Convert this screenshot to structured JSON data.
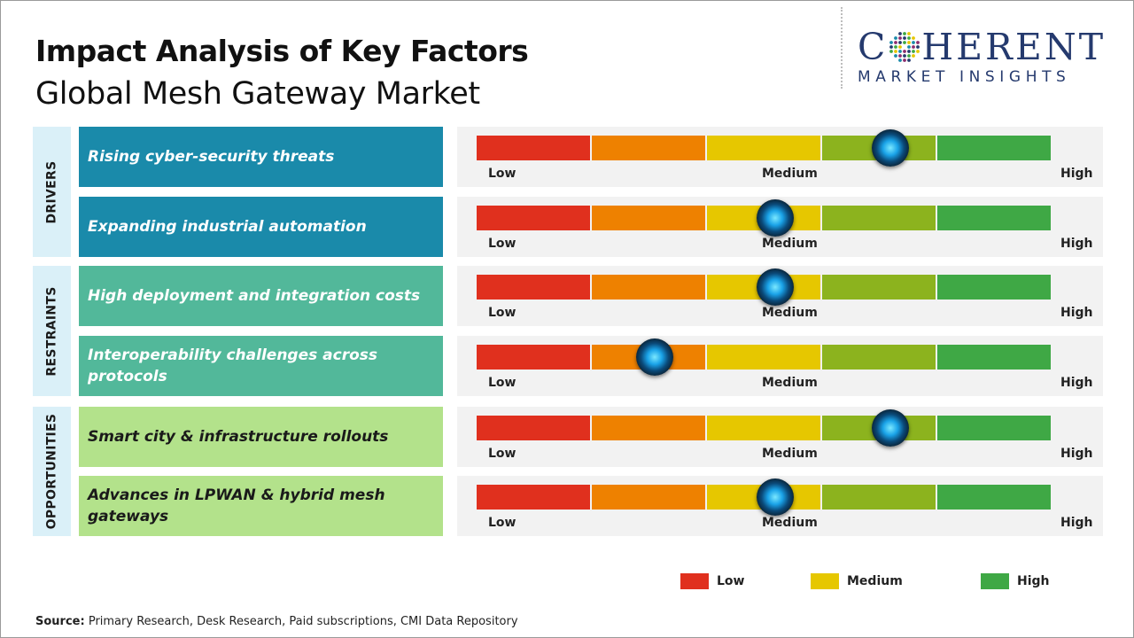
{
  "title": "Impact Analysis of Key Factors",
  "subtitle": "Global Mesh Gateway Market",
  "logo": {
    "main": "COHERENT",
    "sub": "MARKET INSIGHTS"
  },
  "colors": {
    "segments": [
      "#e0301e",
      "#ee8100",
      "#e6c700",
      "#8cb31e",
      "#3fa845"
    ],
    "category_bg": [
      "#daf0f8",
      "#daf0f8",
      "#daf0f8"
    ],
    "drivers_bar": "#1a8aaa",
    "restraints_bar": "#52b89a",
    "opportunities_bar": "#b3e28b",
    "legend_low": "#e0301e",
    "legend_medium": "#e6c700",
    "legend_high": "#3fa845"
  },
  "chart_data": {
    "type": "table",
    "scale_labels": {
      "low": "Low",
      "medium": "Medium",
      "high": "High"
    },
    "scale_levels": 5,
    "categories": [
      {
        "name": "DRIVERS",
        "factors": [
          {
            "label": "Rising cyber-security threats",
            "impact": 0.72
          },
          {
            "label": "Expanding industrial automation",
            "impact": 0.52
          }
        ]
      },
      {
        "name": "RESTRAINTS",
        "factors": [
          {
            "label": "High deployment and integration costs",
            "impact": 0.52
          },
          {
            "label": "Interoperability challenges across protocols",
            "impact": 0.31
          }
        ]
      },
      {
        "name": "OPPORTUNITIES",
        "factors": [
          {
            "label": "Smart city & infrastructure rollouts",
            "impact": 0.72
          },
          {
            "label": "Advances in LPWAN & hybrid mesh gateways",
            "impact": 0.52
          }
        ]
      }
    ],
    "legend": [
      "Low",
      "Medium",
      "High"
    ]
  },
  "source": {
    "label": "Source:",
    "text": "Primary Research, Desk Research, Paid subscriptions, CMI Data Repository"
  }
}
